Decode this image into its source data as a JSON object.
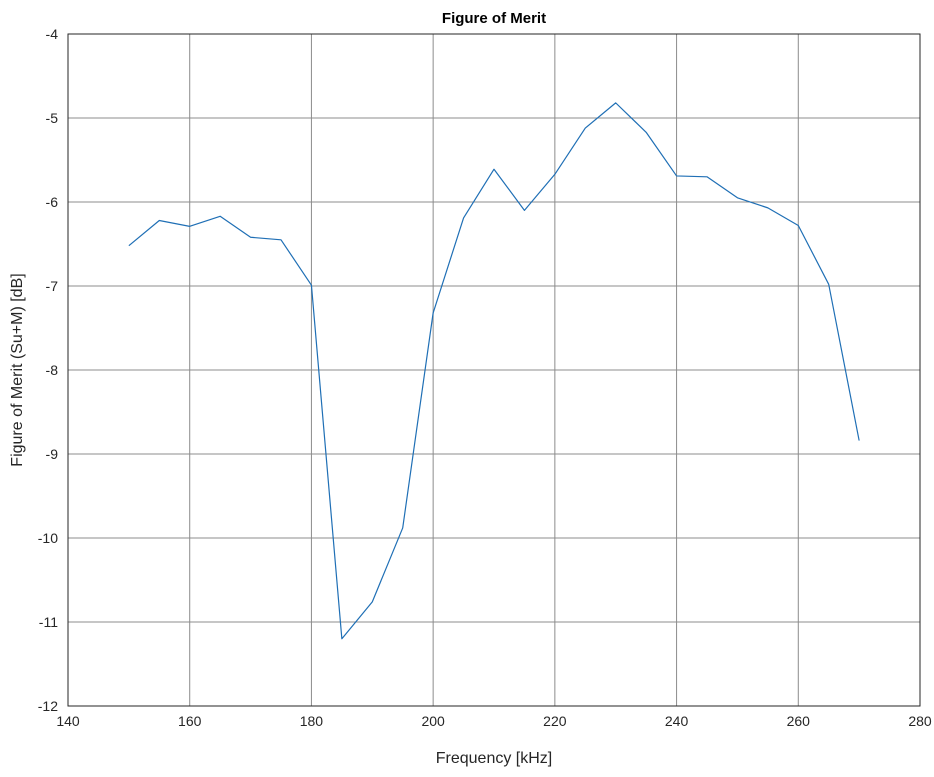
{
  "chart_data": {
    "type": "line",
    "title": "Figure of Merit",
    "xlabel": "Frequency [kHz]",
    "ylabel": "Figure of Merit (Su+M) [dB]",
    "xlim": [
      140,
      280
    ],
    "ylim": [
      -12,
      -4
    ],
    "xticks": [
      140,
      160,
      180,
      200,
      220,
      240,
      260,
      280
    ],
    "yticks": [
      -12,
      -11,
      -10,
      -9,
      -8,
      -7,
      -6,
      -5,
      -4
    ],
    "xtick_labels": [
      "140",
      "160",
      "180",
      "200",
      "220",
      "240",
      "260",
      "280"
    ],
    "ytick_labels": [
      "-12",
      "-11",
      "-10",
      "-9",
      "-8",
      "-7",
      "-6",
      "-5",
      "-4"
    ],
    "grid": true,
    "series": [
      {
        "color": "#1f6fb5",
        "x": [
          150,
          155,
          160,
          165,
          170,
          175,
          180,
          185,
          190,
          195,
          200,
          205,
          210,
          215,
          220,
          225,
          230,
          235,
          240,
          245,
          250,
          255,
          260,
          265,
          270
        ],
        "y": [
          -6.52,
          -6.22,
          -6.29,
          -6.17,
          -6.42,
          -6.45,
          -6.99,
          -11.2,
          -10.76,
          -9.88,
          -7.32,
          -6.19,
          -5.61,
          -6.1,
          -5.67,
          -5.12,
          -4.82,
          -5.17,
          -5.69,
          -5.7,
          -5.95,
          -6.07,
          -6.28,
          -6.98,
          -8.84
        ]
      }
    ]
  }
}
